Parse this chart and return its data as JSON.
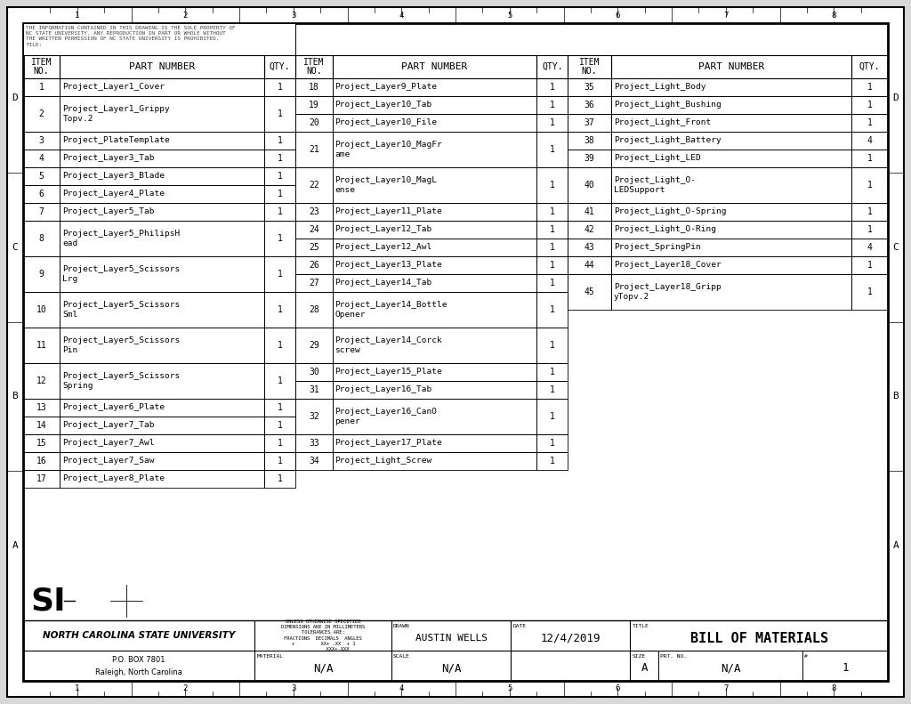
{
  "col1_items": [
    {
      "no": "1",
      "part": "Project_Layer1_Cover",
      "qty": "1"
    },
    {
      "no": "2",
      "part": "Project_Layer1_Grippy\nTopv.2",
      "qty": "1"
    },
    {
      "no": "3",
      "part": "Project_PlateTemplate",
      "qty": "1"
    },
    {
      "no": "4",
      "part": "Project_Layer3_Tab",
      "qty": "1"
    },
    {
      "no": "5",
      "part": "Project_Layer3_Blade",
      "qty": "1"
    },
    {
      "no": "6",
      "part": "Project_Layer4_Plate",
      "qty": "1"
    },
    {
      "no": "7",
      "part": "Project_Layer5_Tab",
      "qty": "1"
    },
    {
      "no": "8",
      "part": "Project_Layer5_PhilipsH\nead",
      "qty": "1"
    },
    {
      "no": "9",
      "part": "Project_Layer5_Scissors\nLrg",
      "qty": "1"
    },
    {
      "no": "10",
      "part": "Project_Layer5_Scissors\nSml",
      "qty": "1"
    },
    {
      "no": "11",
      "part": "Project_Layer5_Scissors\nPin",
      "qty": "1"
    },
    {
      "no": "12",
      "part": "Project_Layer5_Scissors\nSpring",
      "qty": "1"
    },
    {
      "no": "13",
      "part": "Project_Layer6_Plate",
      "qty": "1"
    },
    {
      "no": "14",
      "part": "Project_Layer7_Tab",
      "qty": "1"
    },
    {
      "no": "15",
      "part": "Project_Layer7_Awl",
      "qty": "1"
    },
    {
      "no": "16",
      "part": "Project_Layer7_Saw",
      "qty": "1"
    },
    {
      "no": "17",
      "part": "Project_Layer8_Plate",
      "qty": "1"
    }
  ],
  "col2_items": [
    {
      "no": "18",
      "part": "Project_Layer9_Plate",
      "qty": "1"
    },
    {
      "no": "19",
      "part": "Project_Layer10_Tab",
      "qty": "1"
    },
    {
      "no": "20",
      "part": "Project_Layer10_File",
      "qty": "1"
    },
    {
      "no": "21",
      "part": "Project_Layer10_MagFr\name",
      "qty": "1"
    },
    {
      "no": "22",
      "part": "Project_Layer10_MagL\nense",
      "qty": "1"
    },
    {
      "no": "23",
      "part": "Project_Layer11_Plate",
      "qty": "1"
    },
    {
      "no": "24",
      "part": "Project_Layer12_Tab",
      "qty": "1"
    },
    {
      "no": "25",
      "part": "Project_Layer12_Awl",
      "qty": "1"
    },
    {
      "no": "26",
      "part": "Project_Layer13_Plate",
      "qty": "1"
    },
    {
      "no": "27",
      "part": "Project_Layer14_Tab",
      "qty": "1"
    },
    {
      "no": "28",
      "part": "Project_Layer14_Bottle\nOpener",
      "qty": "1"
    },
    {
      "no": "29",
      "part": "Project_Layer14_Corck\nscrew",
      "qty": "1"
    },
    {
      "no": "30",
      "part": "Project_Layer15_Plate",
      "qty": "1"
    },
    {
      "no": "31",
      "part": "Project_Layer16_Tab",
      "qty": "1"
    },
    {
      "no": "32",
      "part": "Project_Layer16_CanO\npener",
      "qty": "1"
    },
    {
      "no": "33",
      "part": "Project_Layer17_Plate",
      "qty": "1"
    },
    {
      "no": "34",
      "part": "Project_Light_Screw",
      "qty": "1"
    }
  ],
  "col3_items": [
    {
      "no": "35",
      "part": "Project_Light_Body",
      "qty": "1"
    },
    {
      "no": "36",
      "part": "Project_Light_Bushing",
      "qty": "1"
    },
    {
      "no": "37",
      "part": "Project_Light_Front",
      "qty": "1"
    },
    {
      "no": "38",
      "part": "Project_Light_Battery",
      "qty": "4"
    },
    {
      "no": "39",
      "part": "Project_Light_LED",
      "qty": "1"
    },
    {
      "no": "40",
      "part": "Project_Light_O-\nLEDSupport",
      "qty": "1"
    },
    {
      "no": "41",
      "part": "Project_Light_O-Spring",
      "qty": "1"
    },
    {
      "no": "42",
      "part": "Project_Light_O-Ring",
      "qty": "1"
    },
    {
      "no": "43",
      "part": "Project_SpringPin",
      "qty": "4"
    },
    {
      "no": "44",
      "part": "Project_Layer18_Cover",
      "qty": "1"
    },
    {
      "no": "45",
      "part": "Project_Layer18_Gripp\nyTopv.2",
      "qty": "1"
    }
  ],
  "copyright_text": "THE INFORMATION CONTAINED IN THIS DRAWING IS THE SOLE PROPERTY OF\nNC STATE UNIVERSITY. ANY REPRODUCTION IN PART OR WHOLE WITHOUT\nTHE WRITTEN PERMISSION OF NC STATE UNIVERSITY IS PROHIBITED.\nFILE:",
  "ruler_numbers": [
    "1",
    "2",
    "3",
    "4",
    "5",
    "6",
    "7",
    "8"
  ],
  "side_letters": [
    "D",
    "C",
    "B",
    "A"
  ],
  "university": "NORTH CAROLINA STATE UNIVERSITY",
  "address1": "P.O. BOX 7801",
  "address2": "Raleigh, North Carolina",
  "unless_line1": "UNLESS OTHERWISE SPECIFIED",
  "unless_line2": "DIMENSIONS ARE IN MILLIMETERS",
  "unless_line3": "TOLERANCES ARE:",
  "unless_line4": "FRACTIONS  DECIMALS  ANGLES",
  "unless_line5": "+         XX+ .XX  + 1",
  "unless_line6": "          XXX+.XXX",
  "drawn_value": "AUSTIN WELLS",
  "date_value": "12/4/2019",
  "title_value": "BILL OF MATERIALS",
  "material_value": "N/A",
  "scale_value": "N/A",
  "size_value": "A",
  "prtno_value": "N/A",
  "sheet_value": "1",
  "bg_color": "#d8d8d8",
  "paper_color": "#ffffff"
}
